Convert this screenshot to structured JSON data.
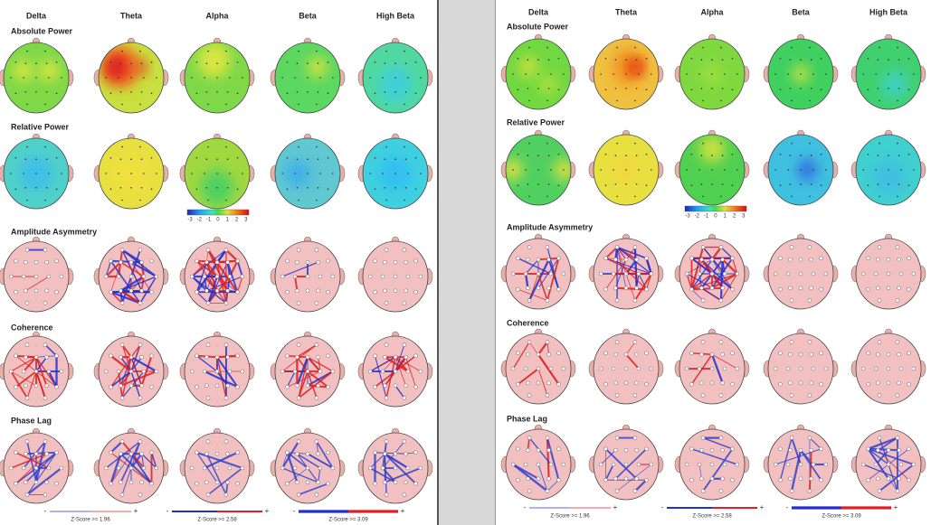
{
  "panels": [
    {
      "bands": [
        "Delta",
        "Theta",
        "Alpha",
        "Beta",
        "High Beta"
      ],
      "sections": [
        "Absolute Power",
        "Relative Power",
        "Amplitude Asymmetry",
        "Coherence",
        "Phase Lag"
      ],
      "scale_labels": [
        "-3",
        "-2",
        "-1",
        "0",
        "1",
        "2",
        "3"
      ],
      "legends": [
        {
          "minus": "-",
          "plus": "+",
          "label": "Z-Score >= 1.96"
        },
        {
          "minus": "-",
          "plus": "+",
          "label": "Z-Score >= 2.58"
        },
        {
          "minus": "-",
          "plus": "+",
          "label": "Z-Score >= 3.09"
        }
      ]
    },
    {
      "bands": [
        "Delta",
        "Theta",
        "Alpha",
        "Beta",
        "High Beta"
      ],
      "sections": [
        "Absolute Power",
        "Relative Power",
        "Amplitude Asymmetry",
        "Coherence",
        "Phase Lag"
      ],
      "scale_labels": [
        "-3",
        "-2",
        "-1",
        "0",
        "1",
        "2",
        "3"
      ],
      "legends": [
        {
          "minus": "-",
          "plus": "+",
          "label": "Z-Score >= 1.96"
        },
        {
          "minus": "-",
          "plus": "+",
          "label": "Z-Score >= 2.58"
        },
        {
          "minus": "-",
          "plus": "+",
          "label": "Z-Score >= 3.09"
        }
      ]
    }
  ]
}
